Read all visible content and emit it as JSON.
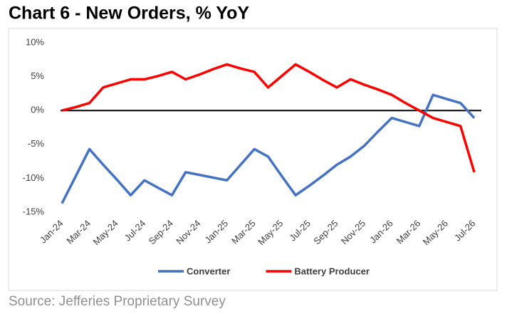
{
  "chart_data": {
    "type": "line",
    "title": "Chart 6 - New Orders, % YoY",
    "source": "Source: Jefferies Proprietary Survey",
    "categories": [
      "Jan-24",
      null,
      "Mar-24",
      null,
      "May-24",
      null,
      "Jul-24",
      null,
      "Sep-24",
      null,
      "Nov-24",
      null,
      "Jan-25",
      null,
      "Mar-25",
      null,
      "May-25",
      null,
      "Jul-25",
      null,
      "Sep-25",
      null,
      "Nov-25",
      null,
      "Jan-26",
      null,
      "Mar-26",
      null,
      "May-26",
      null,
      "Jul-26"
    ],
    "series": [
      {
        "name": "Converter",
        "color": "#4472c4",
        "values": [
          -13.7,
          -9.7,
          -5.7,
          -8.0,
          -10.2,
          -12.5,
          -10.3,
          -11.4,
          -12.5,
          -9.1,
          -9.5,
          -9.9,
          -10.3,
          -8.0,
          -5.7,
          -6.8,
          -9.7,
          -12.5,
          -11.1,
          -9.6,
          -8.0,
          -6.8,
          -5.2,
          -3.1,
          -1.1,
          -1.7,
          -2.3,
          2.3,
          1.7,
          1.1,
          -1.1
        ]
      },
      {
        "name": "Battery Producer",
        "color": "#ff0000",
        "values": [
          0,
          0.5,
          1.1,
          3.4,
          4.0,
          4.6,
          4.6,
          5.1,
          5.7,
          4.6,
          5.3,
          6.1,
          6.8,
          6.2,
          5.7,
          3.4,
          5.1,
          6.8,
          5.7,
          4.5,
          3.4,
          4.6,
          3.8,
          3.1,
          2.3,
          1.1,
          0,
          -1.1,
          -1.7,
          -2.3,
          -9.1
        ]
      }
    ],
    "ylim": [
      -15,
      10
    ],
    "yticks": [
      {
        "value": -15,
        "label": "-15%"
      },
      {
        "value": -10,
        "label": "-10%"
      },
      {
        "value": -5,
        "label": "-5%"
      },
      {
        "value": 0,
        "label": "0%"
      },
      {
        "value": 5,
        "label": "5%"
      },
      {
        "value": 10,
        "label": "10%"
      }
    ],
    "grid": false,
    "legend": "bottom"
  }
}
